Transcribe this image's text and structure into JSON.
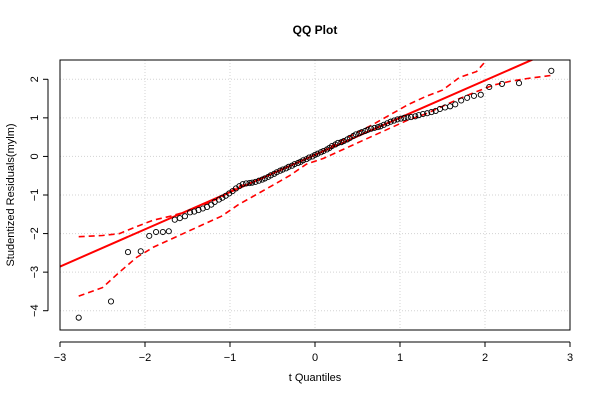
{
  "chart_data": {
    "type": "scatter",
    "title": "QQ Plot",
    "xlabel": "t Quantiles",
    "ylabel": "Studentized Residuals(mylm)",
    "xlim": [
      -3,
      3
    ],
    "ylim": [
      -4.5,
      2.5
    ],
    "x_ticks": [
      -3,
      -2,
      -1,
      0,
      1,
      2,
      3
    ],
    "y_ticks": [
      -4,
      -3,
      -2,
      -1,
      0,
      1,
      2
    ],
    "grid": true,
    "colors": {
      "points": "#000000",
      "reference_line": "#ff0000",
      "envelope": "#ff0000",
      "grid": "#d3d3d3"
    },
    "reference_line": {
      "slope": 0.965,
      "intercept": 0.04
    },
    "envelope_lower": [
      [
        -2.78,
        -3.62
      ],
      [
        -2.5,
        -3.4
      ],
      [
        -2.3,
        -3.0
      ],
      [
        -2.1,
        -2.62
      ],
      [
        -1.9,
        -2.35
      ],
      [
        -1.7,
        -2.15
      ],
      [
        -1.5,
        -1.95
      ],
      [
        -1.3,
        -1.75
      ],
      [
        -1.1,
        -1.55
      ],
      [
        -0.9,
        -1.25
      ],
      [
        -0.7,
        -1.0
      ],
      [
        -0.5,
        -0.75
      ],
      [
        -0.3,
        -0.5
      ],
      [
        -0.1,
        -0.2
      ],
      [
        0.1,
        -0.05
      ],
      [
        0.3,
        0.15
      ],
      [
        0.5,
        0.35
      ],
      [
        0.7,
        0.55
      ],
      [
        0.9,
        0.75
      ],
      [
        1.1,
        0.95
      ],
      [
        1.3,
        1.1
      ],
      [
        1.5,
        1.3
      ],
      [
        1.7,
        1.5
      ],
      [
        1.9,
        1.68
      ],
      [
        2.1,
        1.85
      ],
      [
        2.3,
        1.95
      ],
      [
        2.5,
        2.02
      ],
      [
        2.78,
        2.1
      ]
    ],
    "envelope_upper": [
      [
        -2.78,
        -2.08
      ],
      [
        -2.5,
        -2.05
      ],
      [
        -2.3,
        -2.0
      ],
      [
        -2.1,
        -1.82
      ],
      [
        -1.9,
        -1.65
      ],
      [
        -1.7,
        -1.55
      ],
      [
        -1.5,
        -1.42
      ],
      [
        -1.3,
        -1.25
      ],
      [
        -1.1,
        -1.05
      ],
      [
        -0.9,
        -0.78
      ],
      [
        -0.7,
        -0.65
      ],
      [
        -0.5,
        -0.45
      ],
      [
        -0.3,
        -0.25
      ],
      [
        -0.1,
        -0.05
      ],
      [
        0.1,
        0.15
      ],
      [
        0.3,
        0.4
      ],
      [
        0.5,
        0.62
      ],
      [
        0.7,
        0.85
      ],
      [
        0.9,
        1.1
      ],
      [
        1.1,
        1.35
      ],
      [
        1.3,
        1.55
      ],
      [
        1.5,
        1.72
      ],
      [
        1.7,
        2.05
      ],
      [
        1.9,
        2.2
      ],
      [
        2.0,
        2.45
      ]
    ],
    "points": [
      [
        -2.78,
        -4.18
      ],
      [
        -2.4,
        -3.76
      ],
      [
        -2.2,
        -2.48
      ],
      [
        -2.05,
        -2.46
      ],
      [
        -1.95,
        -2.06
      ],
      [
        -1.87,
        -1.96
      ],
      [
        -1.79,
        -1.96
      ],
      [
        -1.72,
        -1.94
      ],
      [
        -1.65,
        -1.64
      ],
      [
        -1.59,
        -1.6
      ],
      [
        -1.53,
        -1.55
      ],
      [
        -1.47,
        -1.45
      ],
      [
        -1.42,
        -1.43
      ],
      [
        -1.37,
        -1.39
      ],
      [
        -1.32,
        -1.35
      ],
      [
        -1.27,
        -1.31
      ],
      [
        -1.22,
        -1.25
      ],
      [
        -1.18,
        -1.18
      ],
      [
        -1.13,
        -1.12
      ],
      [
        -1.09,
        -1.07
      ],
      [
        -1.05,
        -1.02
      ],
      [
        -1.01,
        -0.96
      ],
      [
        -0.97,
        -0.9
      ],
      [
        -0.93,
        -0.83
      ],
      [
        -0.89,
        -0.77
      ],
      [
        -0.85,
        -0.72
      ],
      [
        -0.81,
        -0.7
      ],
      [
        -0.77,
        -0.69
      ],
      [
        -0.74,
        -0.68
      ],
      [
        -0.7,
        -0.66
      ],
      [
        -0.66,
        -0.63
      ],
      [
        -0.62,
        -0.6
      ],
      [
        -0.59,
        -0.57
      ],
      [
        -0.55,
        -0.53
      ],
      [
        -0.52,
        -0.49
      ],
      [
        -0.48,
        -0.45
      ],
      [
        -0.45,
        -0.41
      ],
      [
        -0.41,
        -0.37
      ],
      [
        -0.38,
        -0.34
      ],
      [
        -0.34,
        -0.31
      ],
      [
        -0.31,
        -0.27
      ],
      [
        -0.27,
        -0.24
      ],
      [
        -0.24,
        -0.2
      ],
      [
        -0.2,
        -0.17
      ],
      [
        -0.17,
        -0.14
      ],
      [
        -0.14,
        -0.1
      ],
      [
        -0.1,
        -0.07
      ],
      [
        -0.07,
        -0.03
      ],
      [
        -0.03,
        0.0
      ],
      [
        0.0,
        0.04
      ],
      [
        0.03,
        0.07
      ],
      [
        0.07,
        0.11
      ],
      [
        0.1,
        0.14
      ],
      [
        0.14,
        0.18
      ],
      [
        0.17,
        0.22
      ],
      [
        0.2,
        0.27
      ],
      [
        0.24,
        0.31
      ],
      [
        0.27,
        0.35
      ],
      [
        0.31,
        0.37
      ],
      [
        0.34,
        0.4
      ],
      [
        0.38,
        0.44
      ],
      [
        0.41,
        0.48
      ],
      [
        0.45,
        0.53
      ],
      [
        0.48,
        0.57
      ],
      [
        0.52,
        0.6
      ],
      [
        0.55,
        0.63
      ],
      [
        0.59,
        0.66
      ],
      [
        0.62,
        0.69
      ],
      [
        0.66,
        0.72
      ],
      [
        0.7,
        0.74
      ],
      [
        0.74,
        0.76
      ],
      [
        0.77,
        0.78
      ],
      [
        0.81,
        0.82
      ],
      [
        0.85,
        0.86
      ],
      [
        0.89,
        0.9
      ],
      [
        0.93,
        0.93
      ],
      [
        0.97,
        0.96
      ],
      [
        1.01,
        0.98
      ],
      [
        1.05,
        1.0
      ],
      [
        1.09,
        1.01
      ],
      [
        1.13,
        1.02
      ],
      [
        1.18,
        1.04
      ],
      [
        1.22,
        1.07
      ],
      [
        1.27,
        1.1
      ],
      [
        1.32,
        1.12
      ],
      [
        1.37,
        1.15
      ],
      [
        1.42,
        1.18
      ],
      [
        1.47,
        1.23
      ],
      [
        1.53,
        1.27
      ],
      [
        1.59,
        1.3
      ],
      [
        1.65,
        1.35
      ],
      [
        1.72,
        1.45
      ],
      [
        1.79,
        1.52
      ],
      [
        1.87,
        1.57
      ],
      [
        1.95,
        1.6
      ],
      [
        2.05,
        1.8
      ],
      [
        2.2,
        1.88
      ],
      [
        2.4,
        1.9
      ],
      [
        2.78,
        2.22
      ]
    ]
  }
}
